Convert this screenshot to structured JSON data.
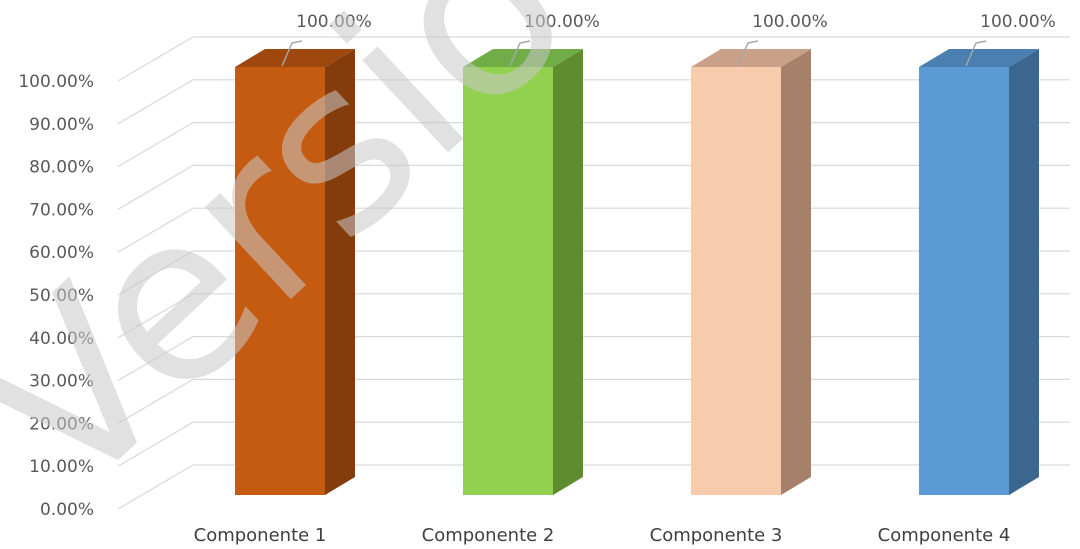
{
  "chart_data": {
    "type": "bar",
    "categories": [
      "Componente 1",
      "Componente 2",
      "Componente 3",
      "Componente 4"
    ],
    "values": [
      100,
      100,
      100,
      100
    ],
    "data_labels": [
      "100.00%",
      "100.00%",
      "100.00%",
      "100.00%"
    ],
    "ylim": [
      0,
      100
    ],
    "yticks": [
      0,
      10,
      20,
      30,
      40,
      50,
      60,
      70,
      80,
      90,
      100
    ],
    "ytick_labels": [
      "0.00%",
      "10.00%",
      "20.00%",
      "30.00%",
      "40.00%",
      "50.00%",
      "60.00%",
      "70.00%",
      "80.00%",
      "90.00%",
      "100.00%"
    ],
    "title": "",
    "xlabel": "",
    "ylabel": "",
    "grid": true,
    "legend": "none",
    "style": "3d-column",
    "bar_colors": [
      {
        "front": "#c55a11",
        "side": "#843c0c",
        "top": "#9e480e"
      },
      {
        "front": "#92d050",
        "side": "#5f8c2f",
        "top": "#70ad47"
      },
      {
        "front": "#f8cbad",
        "side": "#a6806a",
        "top": "#c9a088"
      },
      {
        "front": "#5b9bd5",
        "side": "#3a6690",
        "top": "#4a7fb0"
      }
    ]
  },
  "watermark": {
    "text": "Versio",
    "color": "#c8c8c8"
  }
}
